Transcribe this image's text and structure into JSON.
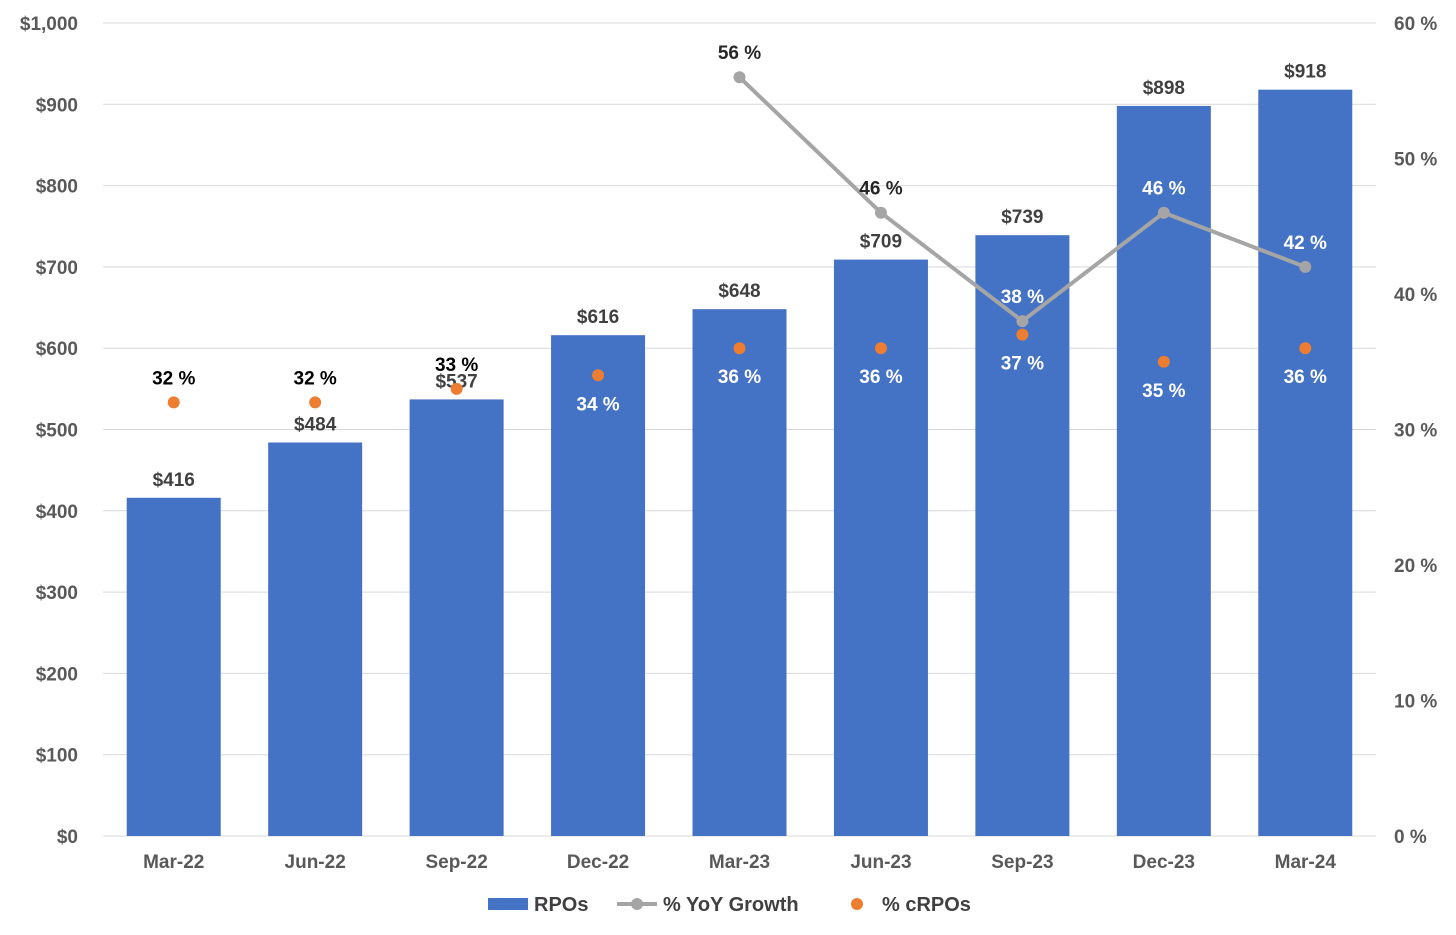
{
  "chart_data": {
    "type": "bar",
    "categories": [
      "Mar-22",
      "Jun-22",
      "Sep-22",
      "Dec-22",
      "Mar-23",
      "Jun-23",
      "Sep-23",
      "Dec-23",
      "Mar-24"
    ],
    "series": [
      {
        "name": "RPOs",
        "type": "bar",
        "axis": "left",
        "color": "#4472C4",
        "values": [
          416,
          484,
          537,
          616,
          648,
          709,
          739,
          898,
          918
        ],
        "labels": [
          "$416",
          "$484",
          "$537",
          "$616",
          "$648",
          "$709",
          "$739",
          "$898",
          "$918"
        ]
      },
      {
        "name": "% YoY Growth",
        "type": "line",
        "axis": "right",
        "color": "#A5A5A5",
        "values": [
          null,
          null,
          null,
          null,
          56,
          46,
          38,
          46,
          42
        ],
        "labels": [
          "",
          "",
          "",
          "",
          "56 %",
          "46 %",
          "38 %",
          "46 %",
          "42 %"
        ]
      },
      {
        "name": "% cRPOs",
        "type": "scatter",
        "axis": "right",
        "color": "#ED7D31",
        "values": [
          32,
          32,
          33,
          34,
          36,
          36,
          37,
          35,
          36
        ],
        "labels": [
          "32 %",
          "32 %",
          "33 %",
          "34 %",
          "36 %",
          "36 %",
          "37 %",
          "35 %",
          "36 %"
        ]
      }
    ],
    "y_left": {
      "lim": [
        0,
        1000
      ],
      "ticks": [
        "$0",
        "$100",
        "$200",
        "$300",
        "$400",
        "$500",
        "$600",
        "$700",
        "$800",
        "$900",
        "$1,000"
      ]
    },
    "y_right": {
      "lim": [
        0,
        60
      ],
      "ticks": [
        "0 %",
        "10 %",
        "20 %",
        "30 %",
        "40 %",
        "50 %",
        "60 %"
      ]
    },
    "grid": true,
    "legend": {
      "position": "bottom",
      "entries": [
        "RPOs",
        "% YoY Growth",
        "% cRPOs"
      ]
    }
  }
}
